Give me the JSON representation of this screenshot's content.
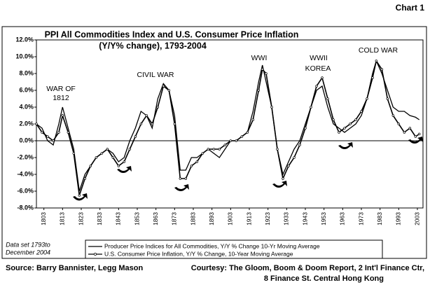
{
  "chart_data": {
    "type": "line",
    "corner_label": "Chart 1",
    "title": "PPI All Commodities Index and U.S. Consumer Price Inflation",
    "subtitle": "(Y/Y% change), 1793-2004",
    "annotations": [
      "WAR OF",
      "1812",
      "CIVIL WAR",
      "WWI",
      "WWII",
      "KOREA",
      "COLD WAR"
    ],
    "x": [
      1799,
      1802,
      1805,
      1808,
      1811,
      1813,
      1816,
      1819,
      1822,
      1825,
      1828,
      1831,
      1834,
      1837,
      1840,
      1843,
      1846,
      1849,
      1852,
      1855,
      1858,
      1861,
      1864,
      1867,
      1870,
      1873,
      1876,
      1879,
      1882,
      1885,
      1888,
      1891,
      1894,
      1897,
      1900,
      1903,
      1906,
      1909,
      1912,
      1915,
      1918,
      1920,
      1922,
      1925,
      1928,
      1931,
      1934,
      1937,
      1940,
      1943,
      1946,
      1949,
      1952,
      1955,
      1958,
      1961,
      1964,
      1967,
      1970,
      1973,
      1976,
      1979,
      1981,
      1984,
      1987,
      1990,
      1993,
      1996,
      1999,
      2002,
      2004
    ],
    "series": [
      {
        "name": "Producer Price Indices for All Commodities, Y/Y % Change 10-Yr Moving Average",
        "color": "#000000",
        "marker": "none",
        "values": [
          2,
          1.5,
          0,
          -0.5,
          2,
          4,
          1.5,
          -1,
          -6,
          -4,
          -3,
          -2,
          -1.5,
          -1,
          -1.5,
          -2.5,
          -2,
          0,
          1.5,
          3.5,
          3,
          1.5,
          5,
          6.8,
          6,
          3,
          -3.5,
          -3.5,
          -2,
          -2,
          -1.5,
          -1,
          -1.5,
          -2,
          -1,
          0,
          0,
          0.5,
          1,
          3.5,
          7,
          9,
          7,
          4,
          -1,
          -4,
          -2.5,
          -1,
          0,
          2,
          4,
          6,
          6.5,
          4,
          2,
          1.5,
          1,
          1.5,
          2,
          3,
          5,
          8,
          9.5,
          8,
          6,
          4,
          3.5,
          3.5,
          3,
          2.8,
          2.5
        ]
      },
      {
        "name": "U.S. Consumer Price Inflation, Y/Y % Change, 10-Year Moving Average",
        "color": "#000000",
        "marker": "circle",
        "values": [
          2,
          1,
          0.5,
          0,
          1,
          3,
          1,
          -1.5,
          -6.5,
          -4.5,
          -3,
          -2,
          -1.5,
          -1,
          -2,
          -3,
          -2.5,
          -1,
          0.5,
          2,
          3,
          2,
          4,
          6.5,
          6,
          2,
          -4.5,
          -4.5,
          -3,
          -2.5,
          -1.5,
          -1,
          -1,
          -1,
          -0.5,
          0,
          0,
          0.5,
          1,
          2.5,
          6,
          8.5,
          8,
          4,
          -1,
          -4.5,
          -3,
          -2,
          -0.5,
          1.5,
          4,
          6.5,
          7.5,
          5,
          2.5,
          1,
          1.5,
          2,
          2.5,
          3.5,
          5,
          7.5,
          9.5,
          8.5,
          5,
          3,
          2,
          1,
          1.5,
          0.5,
          0.8
        ]
      }
    ],
    "xlim": [
      1799,
      2006
    ],
    "xticks": [
      1803,
      1813,
      1823,
      1833,
      1843,
      1853,
      1863,
      1873,
      1883,
      1893,
      1903,
      1913,
      1923,
      1933,
      1943,
      1953,
      1963,
      1973,
      1983,
      1993,
      2003
    ],
    "ylim": [
      -8,
      12
    ],
    "yticks": [
      {
        "value": -8,
        "label": "-8.0%"
      },
      {
        "value": -6,
        "label": "-6.0%"
      },
      {
        "value": -4,
        "label": "-4.0%"
      },
      {
        "value": -2,
        "label": "-2.0%"
      },
      {
        "value": 0,
        "label": "0.0%"
      },
      {
        "value": 2,
        "label": "2.0%"
      },
      {
        "value": 4,
        "label": "4.0%"
      },
      {
        "value": 6,
        "label": "6.0%"
      },
      {
        "value": 8,
        "label": "8.0%"
      },
      {
        "value": 10,
        "label": "10.0%"
      },
      {
        "value": 12,
        "label": "12.0%"
      }
    ],
    "grid": false,
    "note": [
      "Data set 1793to",
      "December 2004"
    ],
    "source": "Source:  Barry Bannister, Legg Mason",
    "courtesy": [
      "Courtesy: The Gloom, Boom & Doom Report, 2 Int'l Finance Ctr,",
      "8 Finance St. Central Hong Kong"
    ]
  }
}
